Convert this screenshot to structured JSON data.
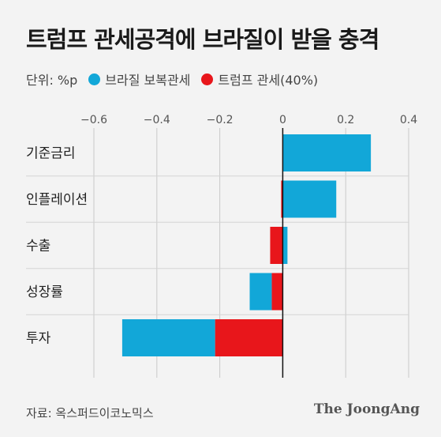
{
  "title": "트럼프 관세공격에 브라질이 받을 충격",
  "legend": {
    "unit": "단위: %p",
    "items": [
      {
        "label": "브라질 보복관세",
        "color": "#12a7d8"
      },
      {
        "label": "트럼프 관세(40%)",
        "color": "#e8161b"
      }
    ]
  },
  "source": "자료: 옥스퍼드이코노믹스",
  "brand": "The JoongAng",
  "chart_data": {
    "type": "bar",
    "orientation": "horizontal",
    "stacked": true,
    "categories": [
      "기준금리",
      "인플레이션",
      "수출",
      "성장률",
      "투자"
    ],
    "xlim": [
      -0.6,
      0.4
    ],
    "xticks": [
      "−0.6",
      "−0.4",
      "−0.2",
      "0",
      "0.2",
      "0.4"
    ],
    "xtick_values": [
      -0.6,
      -0.4,
      -0.2,
      0,
      0.2,
      0.4
    ],
    "grid": true,
    "series": [
      {
        "name": "트럼프 관세(40%)",
        "color": "#e8161b",
        "values": [
          0.0,
          -0.005,
          -0.04,
          -0.035,
          -0.215
        ]
      },
      {
        "name": "브라질 보복관세",
        "color": "#12a7d8",
        "values": [
          0.28,
          0.17,
          0.015,
          -0.07,
          -0.295
        ]
      }
    ]
  }
}
